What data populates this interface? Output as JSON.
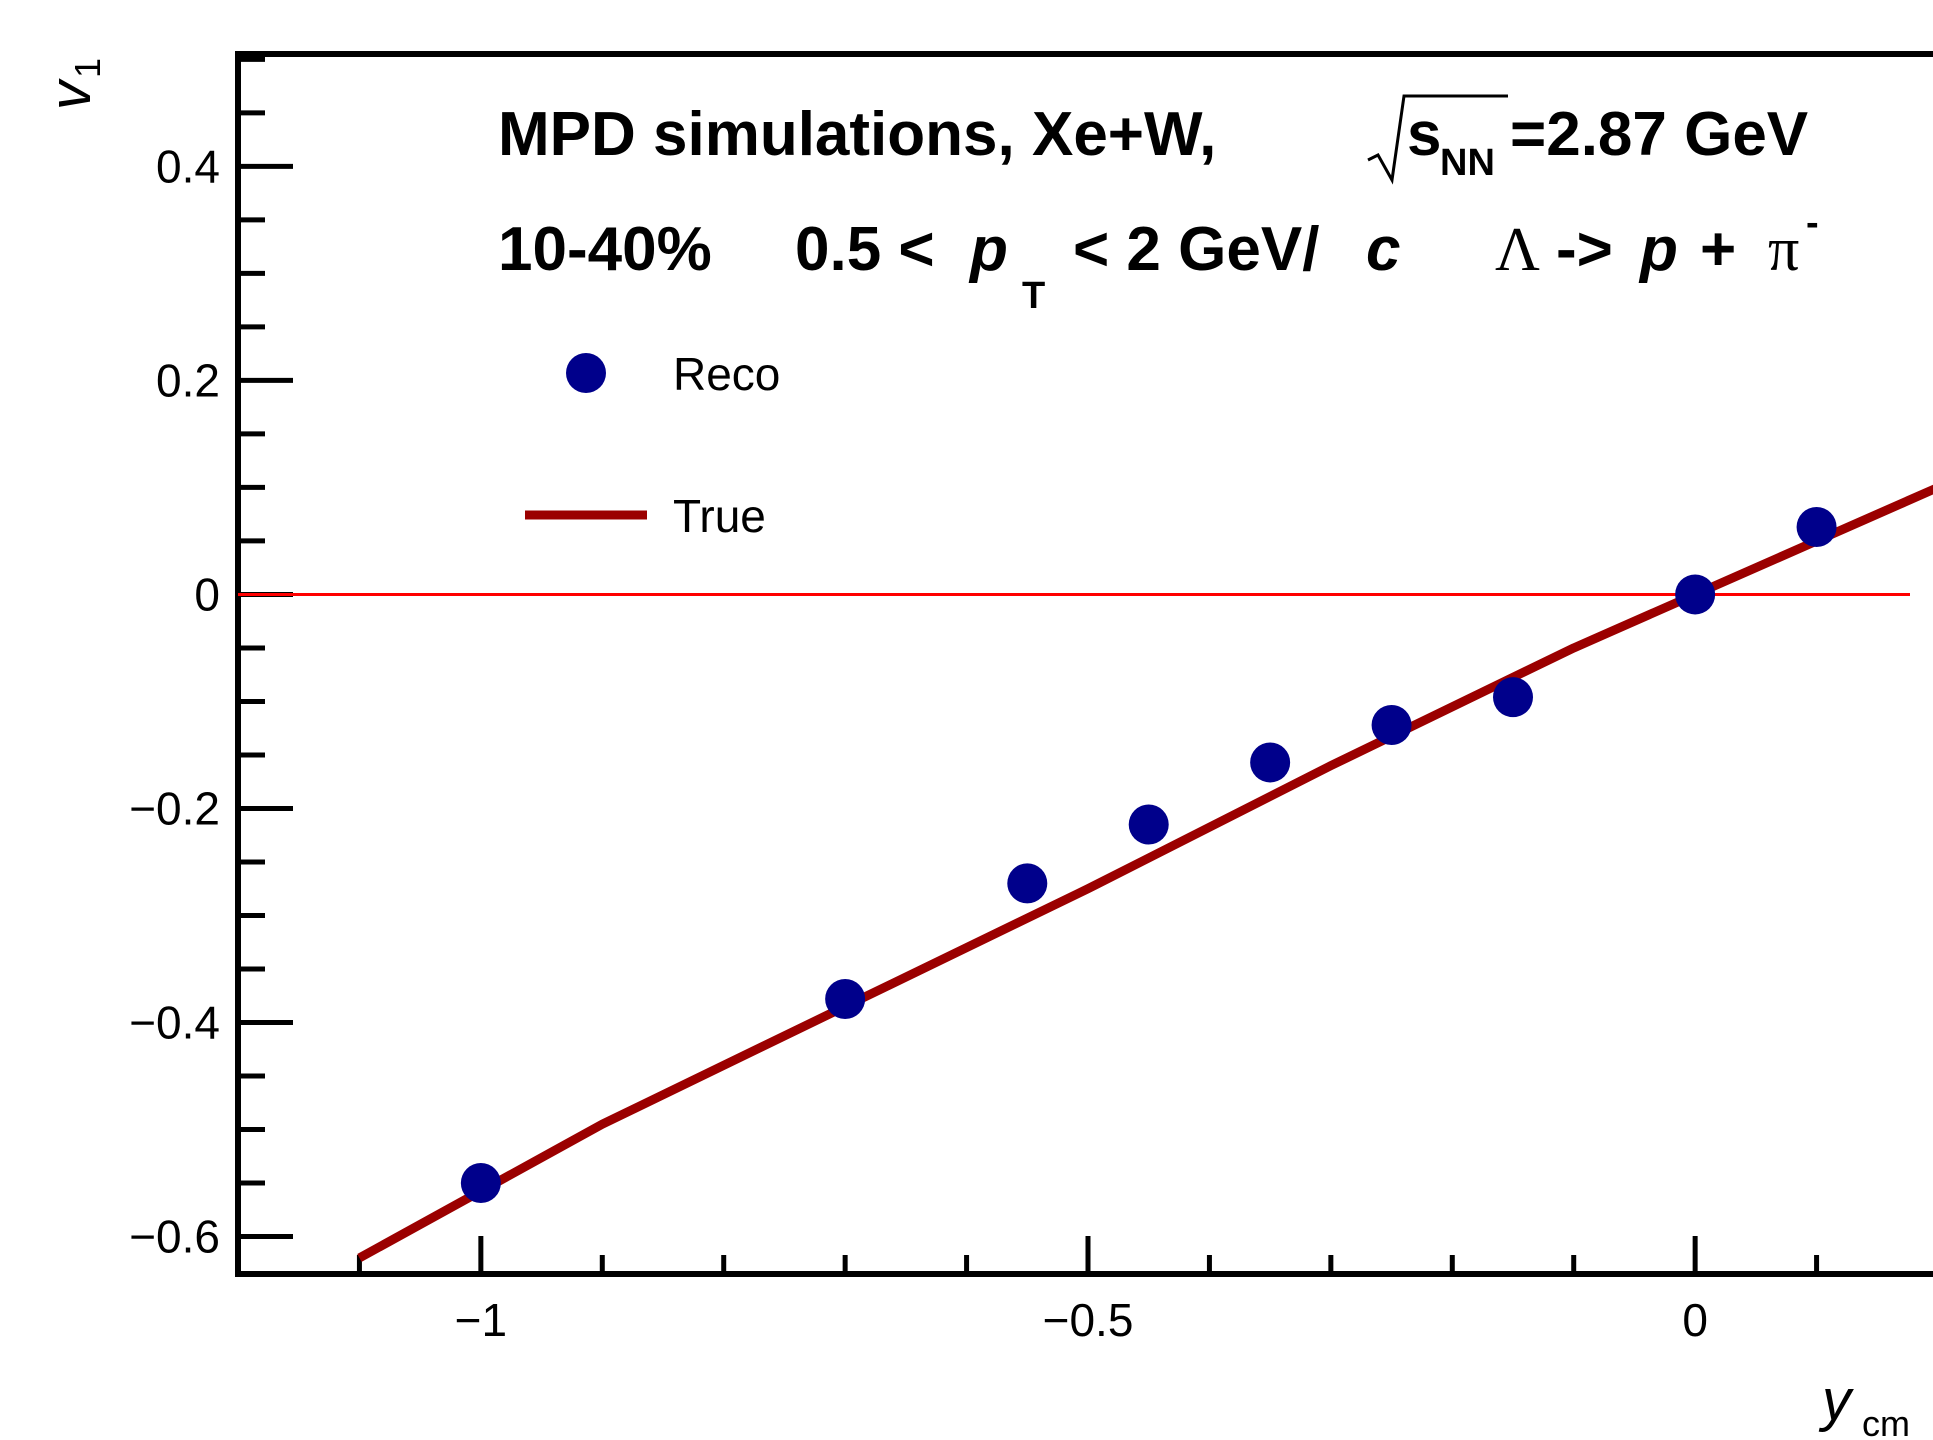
{
  "chart_data": {
    "type": "scatter",
    "annotations": {
      "line1_prefix": "MPD simulations, Xe+W,",
      "line1_sqrt_s": "s",
      "line1_sqrt_sub": "NN",
      "line1_suffix": "=2.87 GeV",
      "line2_centrality": "10-40%",
      "line2_pt_prefix": "0.5 <",
      "line2_pt_p": "p",
      "line2_pt_sub": "T",
      "line2_pt_suffix": "< 2 GeV/",
      "line2_pt_c": "c",
      "line2_decay_lambda": "Λ",
      "line2_decay_arrow": "->",
      "line2_decay_p": "p",
      "line2_decay_plus": "+",
      "line2_decay_pi": "π",
      "line2_decay_sup": "-"
    },
    "xlabel": "y",
    "xlabel_sub": "cm",
    "ylabel": "v",
    "ylabel_sub": "1",
    "xlim": [
      -1.2,
      0.2
    ],
    "ylim": [
      -0.635,
      0.505
    ],
    "x_ticks": [
      {
        "value": -1,
        "label": "−1"
      },
      {
        "value": -0.5,
        "label": "−0.5"
      },
      {
        "value": 0,
        "label": "0"
      }
    ],
    "y_ticks": [
      {
        "value": 0.4,
        "label": "0.4"
      },
      {
        "value": 0.2,
        "label": "0.2"
      },
      {
        "value": 0,
        "label": "0"
      },
      {
        "value": -0.2,
        "label": "−0.2"
      },
      {
        "value": -0.4,
        "label": "−0.4"
      },
      {
        "value": -0.6,
        "label": "−0.6"
      }
    ],
    "series": [
      {
        "name": "Reco",
        "kind": "markers",
        "color": "#00008b",
        "x": [
          -1.0,
          -0.7,
          -0.55,
          -0.45,
          -0.35,
          -0.25,
          -0.15,
          0.0,
          0.1
        ],
        "y": [
          -0.55,
          -0.378,
          -0.27,
          -0.215,
          -0.157,
          -0.122,
          -0.096,
          0.0,
          0.063
        ]
      },
      {
        "name": "True",
        "kind": "line",
        "color": "#9b0000",
        "x": [
          -1.1,
          -0.9,
          -0.7,
          -0.5,
          -0.3,
          -0.1,
          0.0,
          0.2
        ],
        "y": [
          -0.62,
          -0.495,
          -0.385,
          -0.275,
          -0.16,
          -0.05,
          0.0,
          0.1
        ]
      }
    ],
    "reference_line": {
      "y": 0,
      "color": "#ff0000"
    },
    "legend": {
      "placement": "top-left",
      "entries": [
        "Reco",
        "True"
      ]
    },
    "grid": false
  }
}
